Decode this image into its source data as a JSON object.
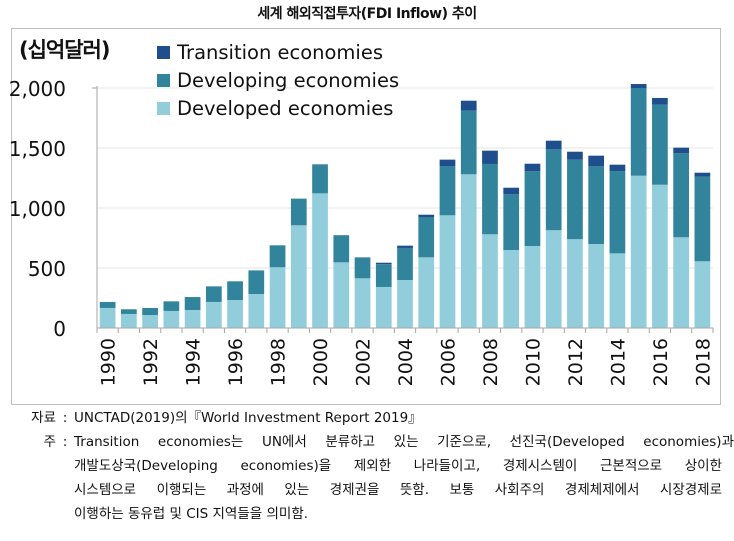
{
  "title": "세계 해외직접투자(FDI Inflow) 추이",
  "chart_data": {
    "type": "bar",
    "stacked": true,
    "title": "세계 해외직접투자(FDI Inflow) 추이",
    "unit_label": "(십억달러)",
    "xlabel": "",
    "ylabel": "(십억달러)",
    "ylim": [
      0,
      2000
    ],
    "yticks": [
      0,
      500,
      1000,
      1500,
      2000
    ],
    "ytick_labels": [
      "0",
      "500",
      "1,000",
      "1,500",
      "2,000"
    ],
    "grid": true,
    "legend_position": "top-left",
    "categories": [
      "1990",
      "1991",
      "1992",
      "1993",
      "1994",
      "1995",
      "1996",
      "1997",
      "1998",
      "1999",
      "2000",
      "2001",
      "2002",
      "2003",
      "2004",
      "2005",
      "2006",
      "2007",
      "2008",
      "2009",
      "2010",
      "2011",
      "2012",
      "2013",
      "2014",
      "2015",
      "2016",
      "2017",
      "2018"
    ],
    "xtick_labels": [
      "1990",
      "1992",
      "1994",
      "1996",
      "1998",
      "2000",
      "2002",
      "2004",
      "2006",
      "2008",
      "2010",
      "2012",
      "2014",
      "2016",
      "2018"
    ],
    "series": [
      {
        "name": "Developed economies",
        "color": "#92cddc",
        "values": [
          167,
          117,
          108,
          142,
          150,
          217,
          233,
          283,
          506,
          856,
          1122,
          547,
          414,
          342,
          400,
          589,
          939,
          1281,
          781,
          650,
          683,
          815,
          740,
          700,
          622,
          1269,
          1194,
          756,
          556
        ]
      },
      {
        "name": "Developing economies",
        "color": "#31849b",
        "values": [
          50,
          39,
          59,
          80,
          108,
          130,
          156,
          197,
          183,
          222,
          236,
          224,
          172,
          190,
          267,
          336,
          408,
          530,
          586,
          464,
          623,
          674,
          663,
          647,
          684,
          731,
          667,
          700,
          705
        ]
      },
      {
        "name": "Transition economies",
        "color": "#1f4e8c",
        "values": [
          0,
          0,
          0,
          0,
          0,
          0,
          0,
          0,
          0,
          0,
          5,
          2,
          3,
          12,
          19,
          19,
          56,
          83,
          111,
          55,
          63,
          72,
          66,
          89,
          55,
          33,
          56,
          47,
          33
        ]
      }
    ],
    "legend_order": [
      "Transition economies",
      "Developing economies",
      "Developed economies"
    ]
  },
  "notes": {
    "source_label": "자료",
    "source_text": "UNCTAD(2019)의『World Investment Report 2019』",
    "note_label": "주",
    "note_lines": [
      "Transition economies는 UN에서 분류하고 있는 기준으로, 선진국(Developed economies)과",
      "개발도상국(Developing economies)을 제외한 나라들이고, 경제시스템이 근본적으로 상이한",
      "시스템으로 이행되는 과정에 있는 경제권을 뜻함. 보통 사회주의 경제체제에서 시장경제로",
      "이행하는 동유럽 및 CIS 지역들을 의미함."
    ],
    "separator": ":"
  }
}
